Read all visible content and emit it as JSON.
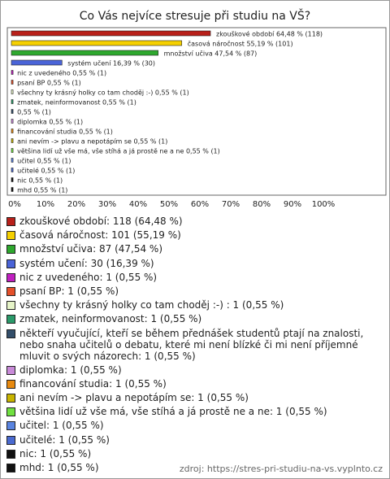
{
  "chart_data": {
    "type": "hbar",
    "title": "Co Vás nejvíce stresuje při studiu na VŠ?",
    "categories": [
      "zkouškové období",
      "časová náročnost",
      "množství učiva",
      "systém učení",
      "nic z uvedeného",
      "psaní BP",
      "všechny ty krásný holky co tam choděj :-) ",
      "zmatek, neinformovanost",
      null,
      "diplomka",
      "financování studia",
      "ani nevím -> plavu a nepotápím se",
      "většina lidí už vše má, vše stíhá a já prostě ne a ne",
      "učitel",
      "učitelé",
      "nic",
      "mhd"
    ],
    "values": [
      64.48,
      55.19,
      47.54,
      16.39,
      0.55,
      0.55,
      0.55,
      0.55,
      0.55,
      0.55,
      0.55,
      0.55,
      0.55,
      0.55,
      0.55,
      0.55,
      0.55
    ],
    "value_labels": [
      "64,48 % (118)",
      "55,19 % (101)",
      "47,54 % (87)",
      "16,39 % (30)",
      "0,55 % (1)",
      "0,55 % (1)",
      "0,55 % (1)",
      "0,55 % (1)",
      "0,55 % (1)",
      "0,55 % (1)",
      "0,55 % (1)",
      "0,55 % (1)",
      "0,55 % (1)",
      "0,55 % (1)",
      "0,55 % (1)",
      "0,55 % (1)",
      "0,55 % (1)"
    ],
    "colors": [
      "#b8201a",
      "#f5d000",
      "#2ea82e",
      "#4a64d8",
      "#c020c0",
      "#e4502a",
      "#e6f4c8",
      "#2a9a6a",
      "#334e6a",
      "#c88ad8",
      "#e88a10",
      "#c8b400",
      "#70e040",
      "#5a84e0",
      "#4a6ad0",
      "#111111",
      "#111111"
    ],
    "legend_labels": [
      "zkouškové období: 118 (64,48 %)",
      "časová náročnost: 101 (55,19 %)",
      "množství učiva: 87 (47,54 %)",
      "systém učení: 30 (16,39 %)",
      "nic z uvedeného: 1 (0,55 %)",
      "psaní BP: 1 (0,55 %)",
      "všechny ty krásný holky co tam choděj :-) : 1 (0,55 %)",
      "zmatek, neinformovanost: 1 (0,55 %)",
      "někteří vyučující, kteří se během přednášek studentů ptají na znalosti, nebo snaha učitelů o debatu, které mi není blízké či mi není příjemné mluvit o svých názorech: 1 (0,55 %)",
      "diplomka: 1 (0,55 %)",
      "financování studia: 1 (0,55 %)",
      "ani nevím -> plavu a nepotápím se: 1 (0,55 %)",
      "většina lidí už vše má, vše stíhá a já prostě ne a ne: 1 (0,55 %)",
      "učitel: 1 (0,55 %)",
      "učitelé: 1 (0,55 %)",
      "nic: 1 (0,55 %)",
      "mhd: 1 (0,55 %)"
    ],
    "xlim": [
      0,
      100
    ],
    "xticks": [
      {
        "value": 0,
        "label": "0%"
      },
      {
        "value": 10,
        "label": "10%"
      },
      {
        "value": 20,
        "label": "20%"
      },
      {
        "value": 30,
        "label": "30%"
      },
      {
        "value": 40,
        "label": "40%"
      },
      {
        "value": 50,
        "label": "50%"
      },
      {
        "value": 60,
        "label": "60%"
      },
      {
        "value": 70,
        "label": "70%"
      },
      {
        "value": 80,
        "label": "80%"
      },
      {
        "value": 90,
        "label": "90%"
      },
      {
        "value": 100,
        "label": "100%"
      }
    ],
    "source": "zdroj: https://stres-pri-studiu-na-vs.vyplnto.cz"
  }
}
